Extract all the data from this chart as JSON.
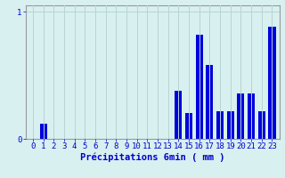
{
  "categories": [
    0,
    1,
    2,
    3,
    4,
    5,
    6,
    7,
    8,
    9,
    10,
    11,
    12,
    13,
    14,
    15,
    16,
    17,
    18,
    19,
    20,
    21,
    22,
    23
  ],
  "values": [
    0,
    0.12,
    0,
    0,
    0,
    0,
    0,
    0,
    0,
    0,
    0,
    0,
    0,
    0,
    0.38,
    0.2,
    0.82,
    0.58,
    0.22,
    0.22,
    0.36,
    0.36,
    0.22,
    0.88
  ],
  "bar_color": "#0000dd",
  "background_color": "#d8f0f0",
  "grid_color": "#b8d4d4",
  "axis_color": "#999999",
  "text_color": "#0000cc",
  "xlabel": "Précipitations 6min ( mm )",
  "ylim": [
    0,
    1.05
  ],
  "yticks": [
    0,
    1
  ],
  "ytick_labels": [
    "0",
    "1"
  ],
  "xlabel_fontsize": 7.5,
  "tick_fontsize": 6.5,
  "bar_width": 0.7
}
